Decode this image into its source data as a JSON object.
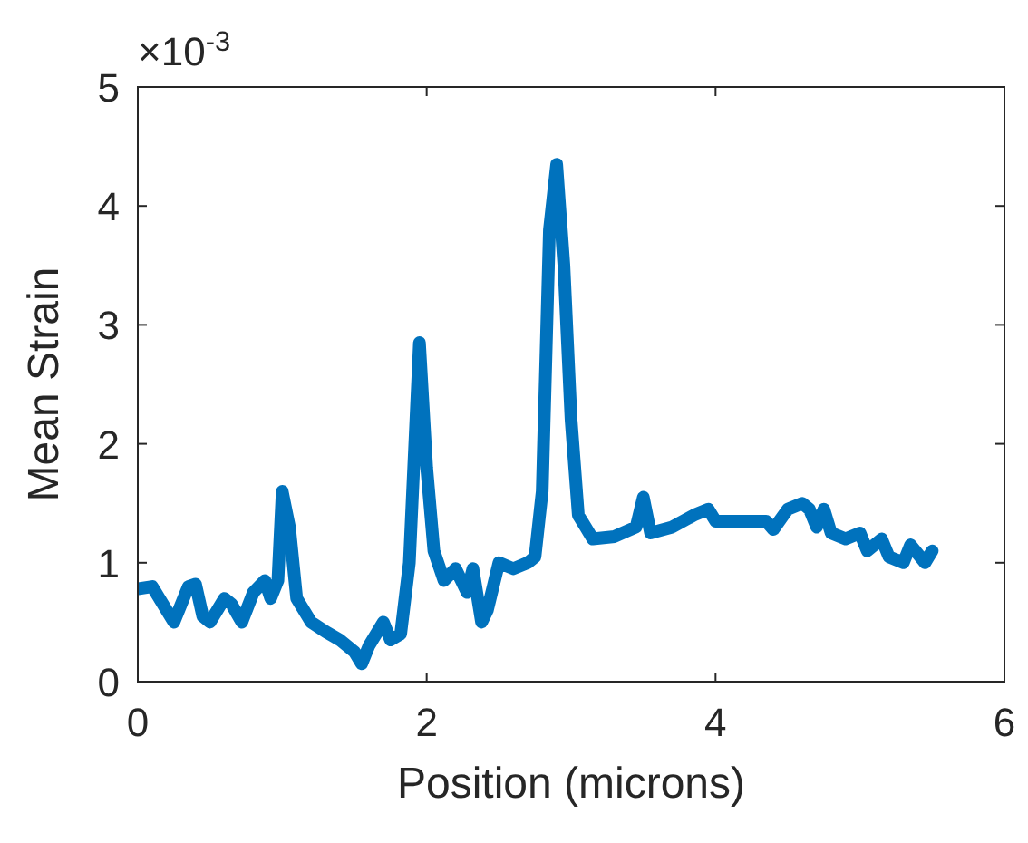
{
  "chart_data": {
    "type": "line",
    "xlabel": "Position (microns)",
    "ylabel": "Mean Strain",
    "annotations": [
      "×10$^{-3}$"
    ],
    "x": [
      0,
      0.1,
      0.2,
      0.25,
      0.35,
      0.4,
      0.45,
      0.5,
      0.6,
      0.65,
      0.72,
      0.8,
      0.88,
      0.92,
      0.97,
      1.0,
      1.05,
      1.1,
      1.2,
      1.3,
      1.4,
      1.5,
      1.55,
      1.6,
      1.7,
      1.75,
      1.82,
      1.88,
      1.95,
      2.0,
      2.05,
      2.12,
      2.2,
      2.28,
      2.32,
      2.38,
      2.42,
      2.5,
      2.6,
      2.7,
      2.75,
      2.8,
      2.85,
      2.9,
      2.95,
      3.0,
      3.05,
      3.1,
      3.15,
      3.3,
      3.45,
      3.5,
      3.55,
      3.7,
      3.85,
      3.95,
      4.0,
      4.2,
      4.35,
      4.4,
      4.5,
      4.6,
      4.65,
      4.7,
      4.75,
      4.8,
      4.9,
      5.0,
      5.05,
      5.15,
      5.2,
      5.3,
      5.35,
      5.45,
      5.5
    ],
    "series": [
      {
        "color": "#0072bd",
        "values": [
          0.78,
          0.8,
          0.6,
          0.5,
          0.8,
          0.82,
          0.55,
          0.5,
          0.7,
          0.65,
          0.5,
          0.75,
          0.85,
          0.7,
          0.85,
          1.6,
          1.3,
          0.7,
          0.5,
          0.42,
          0.35,
          0.25,
          0.15,
          0.3,
          0.5,
          0.35,
          0.4,
          1.0,
          2.85,
          1.8,
          1.1,
          0.85,
          0.95,
          0.75,
          0.95,
          0.5,
          0.6,
          1.0,
          0.95,
          1.0,
          1.05,
          1.6,
          3.8,
          4.35,
          3.5,
          2.2,
          1.4,
          1.3,
          1.2,
          1.22,
          1.3,
          1.55,
          1.25,
          1.3,
          1.4,
          1.45,
          1.35,
          1.35,
          1.35,
          1.28,
          1.45,
          1.5,
          1.45,
          1.3,
          1.45,
          1.25,
          1.2,
          1.25,
          1.1,
          1.2,
          1.05,
          1.0,
          1.15,
          1.0,
          1.1
        ]
      }
    ],
    "xlim": [
      0,
      6
    ],
    "xticks": [
      0,
      2,
      4,
      6
    ],
    "ylim": [
      0,
      5
    ],
    "yticks": [
      0,
      1,
      2,
      3,
      4,
      5
    ],
    "grid": false,
    "marker": "none",
    "line_style": "solid"
  }
}
